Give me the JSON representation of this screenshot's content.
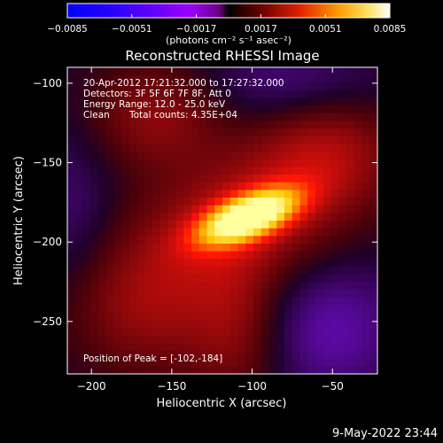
{
  "chart_data": {
    "type": "heatmap",
    "title": "Reconstructed RHESSI Image",
    "xlabel": "Heliocentric X (arcsec)",
    "ylabel": "Heliocentric Y (arcsec)",
    "xlim": [
      -215,
      -22
    ],
    "ylim": [
      -283,
      -90
    ],
    "x_ticks": [
      -200,
      -150,
      -100,
      -50
    ],
    "x_tick_labels": [
      "−200",
      "−150",
      "−100",
      "−50"
    ],
    "y_ticks": [
      -100,
      -150,
      -200,
      -250
    ],
    "y_tick_labels": [
      "−100",
      "−150",
      "−200",
      "−250"
    ],
    "colorbar": {
      "colormap": "hot-with-negative-blue",
      "range": [
        -0.0085,
        0.0085
      ],
      "ticks": [
        -0.0085,
        -0.0051,
        -0.0017,
        0.0017,
        0.0051,
        0.0085
      ],
      "tick_labels": [
        "−0.0085",
        "−0.0051",
        "−0.0017",
        "0.0017",
        "0.0051",
        "0.0085"
      ],
      "units_label": "(photons cm⁻² s⁻¹ asec⁻²)"
    },
    "annotations": [
      "20-Apr-2012 17:21:32.000 to 17:27:32.000",
      "Detectors: 3F 5F 6F 7F 8F, Att 0",
      "Energy Range: 12.0 - 25.0 keV",
      "Clean",
      "Total counts: 4.35E+04"
    ],
    "peak_label": "Position of Peak = [-102,-184]",
    "peak": {
      "x": -102,
      "y": -184
    },
    "grid": false
  },
  "footer": {
    "date": "9-May-2022 23:44"
  }
}
